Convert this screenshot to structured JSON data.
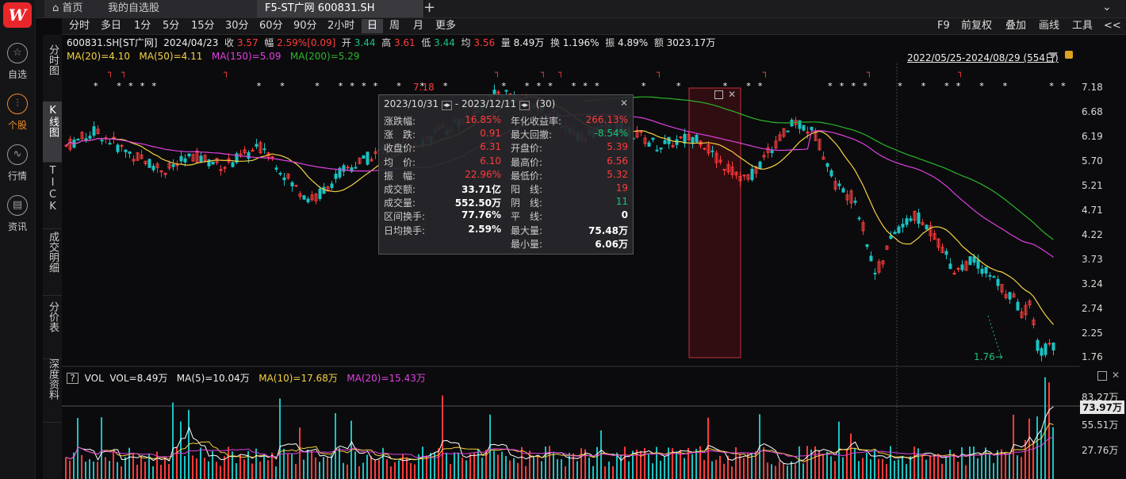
{
  "appbar": {
    "logo": "W",
    "items": [
      {
        "label": "自选",
        "icon": "star-icon",
        "glyph": "☆"
      },
      {
        "label": "个股",
        "icon": "chart-icon",
        "glyph": "㎡"
      },
      {
        "label": "行情",
        "icon": "trend-icon",
        "glyph": "∿"
      },
      {
        "label": "资讯",
        "icon": "news-icon",
        "glyph": "▤"
      }
    ]
  },
  "tabs": {
    "home": "首页",
    "watchlist": "我的自选股",
    "active": "F5-ST广网 600831.SH",
    "add": "+",
    "down": "⌄"
  },
  "periods": [
    "分时",
    "多日",
    "1分",
    "5分",
    "15分",
    "30分",
    "60分",
    "90分",
    "2小时",
    "日",
    "周",
    "月",
    "更多"
  ],
  "active_period": "日",
  "right_tools": [
    "F9",
    "前复权",
    "叠加",
    "画线",
    "工具",
    "<<"
  ],
  "vtabs": [
    "分时图",
    "K线图",
    "TICK",
    "成交明细",
    "分价表",
    "深度资料"
  ],
  "quote": {
    "code": "600831.SH[ST广网]",
    "date": "2024/04/23",
    "close_label": "收",
    "close": "3.57",
    "chg_label": "幅",
    "chg": "2.59%[0.09]",
    "open_label": "开",
    "open": "3.44",
    "high_label": "高",
    "high": "3.61",
    "low_label": "低",
    "low": "3.44",
    "avg_label": "均",
    "avg": "3.56",
    "vol_label": "量",
    "vol": "8.49万",
    "turn_label": "换",
    "turn": "1.196%",
    "amp_label": "振",
    "amp": "4.89%",
    "amt_label": "额",
    "amt": "3023.17万"
  },
  "ma": {
    "ma20": "MA(20)=4.10",
    "ma50": "MA(50)=4.11",
    "ma150": "MA(150)=5.09",
    "ma200": "MA(200)=5.29"
  },
  "range": "2022/05/25-2024/08/29 (554日)",
  "yaxis": [
    "7.18",
    "6.68",
    "6.19",
    "5.70",
    "5.21",
    "4.71",
    "4.22",
    "3.73",
    "3.24",
    "2.74",
    "2.25",
    "1.76"
  ],
  "vol_axis": [
    "83.27万",
    "73.97万",
    "55.51万",
    "27.76万"
  ],
  "low_marker": "1.76",
  "high_marker": "7.18",
  "vol_info": {
    "q": "?",
    "title": "VOL",
    "vol": "VOL=8.49万",
    "ma5": "MA(5)=10.04万",
    "ma10": "MA(10)=17.68万",
    "ma20": "MA(20)=15.43万"
  },
  "popup": {
    "start": "2023/10/31",
    "end": "2023/12/11",
    "count": "(30)",
    "left": [
      {
        "k": "涨跌幅:",
        "v": "16.85%",
        "c": "red"
      },
      {
        "k": "涨　跌:",
        "v": "0.91",
        "c": "red"
      },
      {
        "k": "收盘价:",
        "v": "6.31",
        "c": "red"
      },
      {
        "k": "均　价:",
        "v": "6.10",
        "c": "red"
      },
      {
        "k": "振　幅:",
        "v": "22.96%",
        "c": "red"
      },
      {
        "k": "成交额:",
        "v": "33.71亿",
        "c": "wht"
      },
      {
        "k": "成交量:",
        "v": "552.50万",
        "c": "wht"
      },
      {
        "k": "区间换手:",
        "v": "77.76%",
        "c": "wht"
      },
      {
        "k": "日均换手:",
        "v": "2.59%",
        "c": "wht"
      }
    ],
    "right": [
      {
        "k": "年化收益率:",
        "v": "266.13%",
        "c": "red"
      },
      {
        "k": "最大回撤:",
        "v": "-8.54%",
        "c": "grn"
      },
      {
        "k": "开盘价:",
        "v": "5.39",
        "c": "red"
      },
      {
        "k": "最高价:",
        "v": "6.56",
        "c": "red"
      },
      {
        "k": "最低价:",
        "v": "5.32",
        "c": "red"
      },
      {
        "k": "阳　线:",
        "v": "19",
        "c": "red"
      },
      {
        "k": "阴　线:",
        "v": "11",
        "c": "grn"
      },
      {
        "k": "平　线:",
        "v": "0",
        "c": "wht"
      },
      {
        "k": "最大量:",
        "v": "75.48万",
        "c": "wht"
      },
      {
        "k": "最小量:",
        "v": "6.06万",
        "c": "wht"
      }
    ]
  },
  "colors": {
    "up": "#ff3b3b",
    "down": "#19c3c3",
    "ma20": "#f5d142",
    "ma50": "#f5d142",
    "ma150": "#e040e0",
    "ma200": "#2bb52b",
    "accent": "#f08a24"
  }
}
